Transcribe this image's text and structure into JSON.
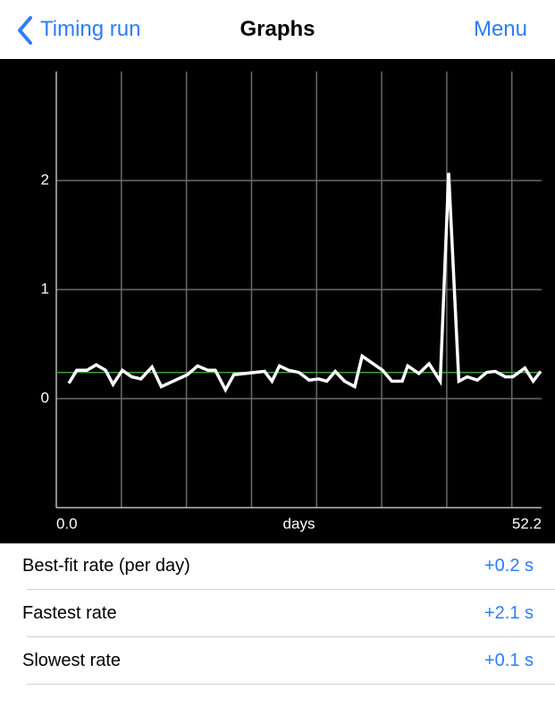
{
  "nav": {
    "back": "Timing run",
    "title": "Graphs",
    "menu": "Menu"
  },
  "chart_data": {
    "type": "line",
    "x_label": "days",
    "x": [
      1.35,
      2.2,
      3.3,
      4.3,
      5.3,
      6.1,
      7.1,
      8.1,
      9.1,
      10.3,
      11.3,
      14.1,
      15.2,
      16.3,
      17.1,
      18.2,
      19.1,
      22.4,
      23.2,
      24.0,
      25.0,
      26.1,
      27.2,
      28.2,
      29.1,
      30.0,
      31.0,
      32.1,
      32.9,
      35.1,
      36.1,
      37.2,
      37.8,
      39.0,
      40.1,
      41.3,
      42.2,
      43.3,
      44.2,
      45.3,
      46.3,
      47.2,
      48.3,
      49.1,
      50.4,
      51.3,
      52.1
    ],
    "values": [
      0.14,
      0.26,
      0.26,
      0.31,
      0.26,
      0.13,
      0.26,
      0.2,
      0.18,
      0.29,
      0.11,
      0.22,
      0.3,
      0.26,
      0.26,
      0.08,
      0.22,
      0.25,
      0.16,
      0.3,
      0.26,
      0.24,
      0.17,
      0.18,
      0.16,
      0.25,
      0.16,
      0.11,
      0.39,
      0.26,
      0.16,
      0.16,
      0.3,
      0.23,
      0.32,
      0.16,
      2.07,
      0.16,
      0.2,
      0.17,
      0.24,
      0.25,
      0.2,
      0.2,
      0.28,
      0.16,
      0.25
    ],
    "color": "#ffffff",
    "reference_line": {
      "value": 0.24,
      "color": "#3f9d3f"
    },
    "xlim": [
      0,
      52.2
    ],
    "xticks": [
      {
        "value": 0,
        "label": "0.0"
      },
      {
        "value": 52.2,
        "label": "52.2"
      }
    ],
    "xgrid": [
      7,
      14,
      21,
      28,
      35,
      42,
      49
    ],
    "ylim": [
      -1,
      3
    ],
    "yticks": [
      0,
      1,
      2
    ],
    "grid": true
  },
  "rows": [
    {
      "label": "Best-fit rate (per day)",
      "value": "+0.2 s"
    },
    {
      "label": "Fastest rate",
      "value": "+2.1 s"
    },
    {
      "label": "Slowest rate",
      "value": "+0.1 s"
    }
  ]
}
